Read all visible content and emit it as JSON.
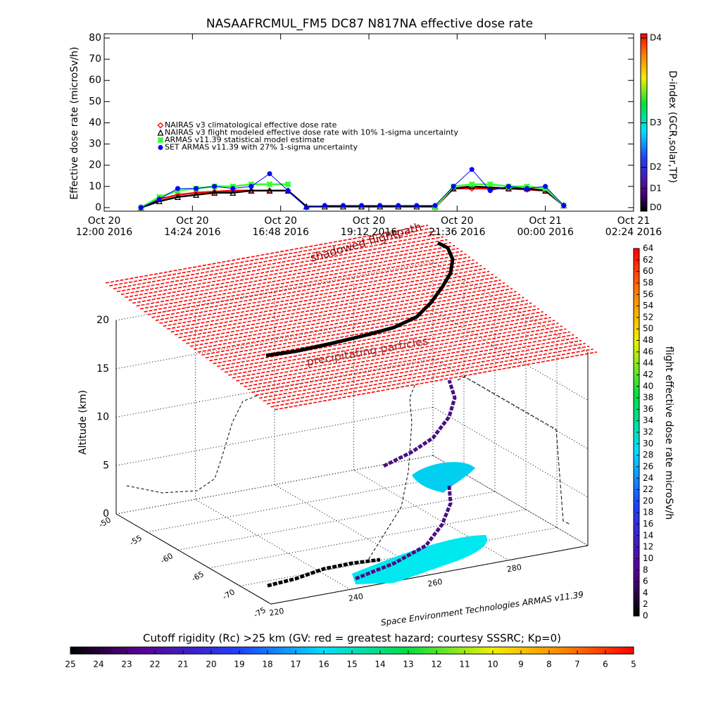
{
  "chart_data": [
    {
      "type": "line",
      "title": "NASAAFRCMUL_FM5 DC87 N817NA effective dose rate",
      "ylabel": "Effective dose rate (microSv/h)",
      "x": [
        "2016-10-20T13:00",
        "2016-10-20T13:30",
        "2016-10-20T14:00",
        "2016-10-20T14:30",
        "2016-10-20T15:00",
        "2016-10-20T15:30",
        "2016-10-20T16:00",
        "2016-10-20T16:30",
        "2016-10-20T17:00",
        "2016-10-20T17:30",
        "2016-10-20T18:00",
        "2016-10-20T18:30",
        "2016-10-20T19:00",
        "2016-10-20T19:30",
        "2016-10-20T20:00",
        "2016-10-20T20:30",
        "2016-10-20T21:00",
        "2016-10-20T21:30",
        "2016-10-20T22:00",
        "2016-10-20T22:30",
        "2016-10-20T23:00",
        "2016-10-20T23:30",
        "2016-10-21T00:00",
        "2016-10-21T00:30"
      ],
      "xlim": [
        "2016-10-20T12:00",
        "2016-10-21T02:24"
      ],
      "xticks": [
        {
          "value": "2016-10-20T12:00",
          "label": [
            "Oct 20",
            "12:00 2016"
          ]
        },
        {
          "value": "2016-10-20T14:24",
          "label": [
            "Oct 20",
            "14:24 2016"
          ]
        },
        {
          "value": "2016-10-20T16:48",
          "label": [
            "Oct 20",
            "16:48 2016"
          ]
        },
        {
          "value": "2016-10-20T19:12",
          "label": [
            "Oct 20",
            "19:12 2016"
          ]
        },
        {
          "value": "2016-10-20T21:36",
          "label": [
            "Oct 20",
            "21:36 2016"
          ]
        },
        {
          "value": "2016-10-21T00:00",
          "label": [
            "Oct 21",
            "00:00 2016"
          ]
        },
        {
          "value": "2016-10-21T02:24",
          "label": [
            "Oct 21",
            "02:24 2016"
          ]
        }
      ],
      "ylim": [
        -1.7,
        82
      ],
      "yticks": [
        0,
        10,
        20,
        30,
        40,
        50,
        60,
        70,
        80
      ],
      "legend": "upper left",
      "series": [
        {
          "name": "NAIRAS v3 climatological effective dose rate",
          "color": "#ff0000",
          "marker": "diamond",
          "values": [
            0,
            4,
            6,
            7,
            7.5,
            8,
            8,
            8,
            8,
            null,
            null,
            null,
            null,
            null,
            null,
            null,
            0,
            9,
            9,
            9,
            9,
            8.5,
            8,
            1
          ]
        },
        {
          "name": "NAIRAS v3 flight modeled effective dose rate with 10% 1-sigma uncertainty",
          "color": "#000000",
          "marker": "triangle",
          "values": [
            0,
            3,
            5,
            6,
            7,
            7,
            8,
            8,
            8,
            0.5,
            0.5,
            0.5,
            0.5,
            0.5,
            0.5,
            0.5,
            0.5,
            9,
            10,
            9.5,
            9,
            9,
            8,
            1
          ]
        },
        {
          "name": "ARMAS v11.39 statistical model estimate",
          "color": "#33ff33",
          "marker": "asterisk",
          "values": [
            0,
            5,
            8,
            9,
            10,
            10,
            11,
            11,
            11,
            null,
            null,
            null,
            null,
            null,
            null,
            null,
            0,
            10,
            11,
            11,
            10,
            10,
            9,
            1
          ]
        },
        {
          "name": "SET ARMAS v11.39 with 27% 1-sigma uncertainty",
          "color": "#0000ff",
          "marker": "circle",
          "values": [
            0,
            4,
            9,
            9,
            10,
            9,
            10,
            16,
            8,
            0,
            1,
            1,
            1,
            1,
            1,
            1,
            1,
            10,
            18,
            8,
            10,
            9,
            10,
            1
          ]
        }
      ],
      "d_index": {
        "label": "D-index (GCR,solar,TP)",
        "ticks": [
          {
            "value": 0,
            "label": "D0"
          },
          {
            "value": 9,
            "label": "D1"
          },
          {
            "value": 19,
            "label": "D2"
          },
          {
            "value": 40,
            "label": "D3"
          },
          {
            "value": 80,
            "label": "D4"
          }
        ]
      }
    },
    {
      "type": "3d",
      "zlabel": "Altitude (km)",
      "zlim": [
        0,
        20
      ],
      "zticks": [
        0,
        5,
        10,
        15,
        20
      ],
      "latlim": [
        -75,
        -50
      ],
      "latticks": [
        -50,
        -55,
        -60,
        -65,
        -70,
        -75
      ],
      "lonlim": [
        220,
        300
      ],
      "lonticks": [
        220,
        240,
        260,
        280
      ],
      "annotations": [
        "shadowed flightpath",
        "precipitating particles",
        "Space Environment Technologies ARMAS v11.39"
      ],
      "dose_colorbar": {
        "label": "flight effective dose rate microSv/h",
        "lim": [
          0,
          64
        ],
        "ticks": [
          0,
          2,
          4,
          6,
          8,
          10,
          12,
          14,
          16,
          18,
          20,
          22,
          24,
          26,
          28,
          30,
          32,
          34,
          36,
          38,
          40,
          42,
          44,
          46,
          48,
          50,
          52,
          54,
          56,
          58,
          60,
          62,
          64
        ]
      },
      "rigidity_colorbar": {
        "label": "Cutoff rigidity (Rc) >25 km (GV: red = greatest hazard; courtesy SSSRC; Kp=0)",
        "lim": [
          25,
          5
        ],
        "ticks": [
          25,
          24,
          23,
          22,
          21,
          20,
          19,
          18,
          17,
          16,
          15,
          14,
          13,
          12,
          11,
          10,
          9,
          8,
          7,
          6,
          5
        ]
      }
    }
  ]
}
